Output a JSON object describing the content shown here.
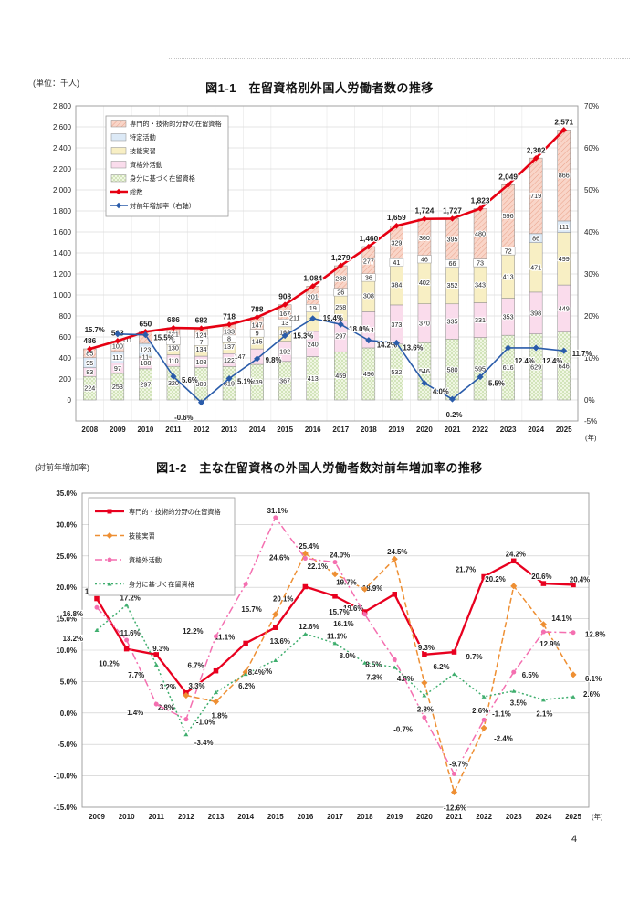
{
  "page": {
    "number": "4"
  },
  "colors": {
    "senmon_fill": "#f9d5c8",
    "senmon_hatch": "#e9a28a",
    "tokutei_fill": "#dce9f6",
    "ginou_fill": "#f8efc4",
    "shikakugai_fill": "#fadcec",
    "mibun_fill": "#f0f6e3",
    "mibun_check": "#d2e4ba",
    "total_line": "#e60012",
    "rate_line": "#2a5caa",
    "fig2_senmon": "#e8001f",
    "fig2_ginou": "#ee8f33",
    "fig2_shikakugai": "#f46fb0",
    "fig2_mibun": "#3fae6e",
    "grid": "#c9c9c9",
    "frame": "#9a9a9a",
    "text": "#222222"
  },
  "chart_data": [
    {
      "id": "fig1-1",
      "type": "bar",
      "title": "図1-1　在留資格別外国人労働者数の推移",
      "unit_label": "(単位：千人)",
      "x_suffix": "(年)",
      "x": [
        2008,
        2009,
        2010,
        2011,
        2012,
        2013,
        2014,
        2015,
        2016,
        2017,
        2018,
        2019,
        2020,
        2021,
        2022,
        2023,
        2024,
        2025
      ],
      "left_axis": {
        "min": 0,
        "max": 2800,
        "step": 200,
        "under": -200
      },
      "right_axis": {
        "ticks": [
          70,
          60,
          50,
          40,
          30,
          20,
          10,
          0,
          -5
        ],
        "suffix": "%"
      },
      "grid": true,
      "legend_position": "top-left-inside",
      "bar_series": [
        {
          "name": "専門的・技術的分野の在留資格",
          "key": "senmon",
          "values": [
            85,
            100,
            111,
            121,
            124,
            133,
            147,
            167,
            201,
            238,
            277,
            329,
            360,
            395,
            480,
            596,
            719,
            866
          ]
        },
        {
          "name": "特定活動",
          "key": "tokutei",
          "values": [
            95,
            112,
            123,
            6,
            7,
            8,
            9,
            13,
            19,
            26,
            36,
            41,
            46,
            66,
            73,
            72,
            86,
            111
          ]
        },
        {
          "name": "技能実習",
          "key": "ginou",
          "values": [
            null,
            null,
            11,
            130,
            134,
            137,
            145,
            168,
            211,
            258,
            308,
            384,
            402,
            352,
            343,
            413,
            471,
            499
          ]
        },
        {
          "name": "資格外活動",
          "key": "shikakugai",
          "values": [
            83,
            97,
            108,
            110,
            108,
            122,
            147,
            192,
            240,
            297,
            344,
            373,
            370,
            335,
            331,
            353,
            398,
            449
          ]
        },
        {
          "name": "身分に基づく在留資格",
          "key": "mibun",
          "values": [
            224,
            253,
            297,
            320,
            309,
            319,
            339,
            367,
            413,
            459,
            496,
            532,
            546,
            580,
            595,
            616,
            629,
            646
          ]
        }
      ],
      "line_series": [
        {
          "name": "総数",
          "axis": "left",
          "values": [
            486,
            563,
            650,
            686,
            682,
            718,
            788,
            908,
            1084,
            1279,
            1460,
            1659,
            1724,
            1727,
            1823,
            2049,
            2302,
            2571
          ]
        },
        {
          "name": "対前年増加率（右軸）",
          "axis": "right",
          "values": [
            null,
            15.7,
            15.5,
            5.6,
            -0.6,
            5.1,
            9.8,
            15.3,
            19.4,
            18.0,
            14.2,
            13.6,
            4.0,
            0.2,
            5.5,
            12.4,
            12.4,
            11.7
          ]
        }
      ]
    },
    {
      "id": "fig1-2",
      "type": "line",
      "title": "図1-2　主な在留資格の外国人労働者数対前年増加率の推移",
      "ylabel": "(対前年増加率)",
      "x_suffix": "(年)",
      "x": [
        2009,
        2010,
        2011,
        2012,
        2013,
        2014,
        2015,
        2016,
        2017,
        2018,
        2019,
        2020,
        2021,
        2022,
        2023,
        2024,
        2025
      ],
      "y_axis": {
        "min": -15,
        "max": 35,
        "step": 5,
        "suffix": "%"
      },
      "grid": true,
      "legend_position": "top-left-inside",
      "series": [
        {
          "name": "専門的・技術的分野の在留資格",
          "key": "senmon",
          "style": "solid",
          "marker": "square",
          "values": [
            18.2,
            10.2,
            9.3,
            3.2,
            6.7,
            11.1,
            13.6,
            20.1,
            18.6,
            16.1,
            18.9,
            9.3,
            9.7,
            21.7,
            24.2,
            20.6,
            20.4
          ]
        },
        {
          "name": "技能実習",
          "key": "ginou",
          "style": "dashed",
          "marker": "diamond",
          "values": [
            null,
            null,
            null,
            2.8,
            1.8,
            6.5,
            15.7,
            25.4,
            22.1,
            19.7,
            24.5,
            4.8,
            -12.6,
            -2.4,
            20.2,
            14.1,
            6.1
          ]
        },
        {
          "name": "資格外活動",
          "key": "shikakugai",
          "style": "dashdot",
          "marker": "circle",
          "values": [
            16.8,
            11.6,
            1.4,
            -1.0,
            12.2,
            20.5,
            31.1,
            24.6,
            24.0,
            15.7,
            8.5,
            -0.7,
            -9.7,
            -1.1,
            6.5,
            12.9,
            12.8
          ]
        },
        {
          "name": "身分に基づく在留資格",
          "key": "mibun",
          "style": "dotted",
          "marker": "triangle",
          "values": [
            13.2,
            17.2,
            7.7,
            -3.4,
            3.3,
            6.2,
            8.4,
            12.6,
            11.1,
            8.0,
            7.3,
            2.8,
            6.2,
            2.6,
            3.5,
            2.1,
            2.6
          ]
        }
      ]
    }
  ]
}
